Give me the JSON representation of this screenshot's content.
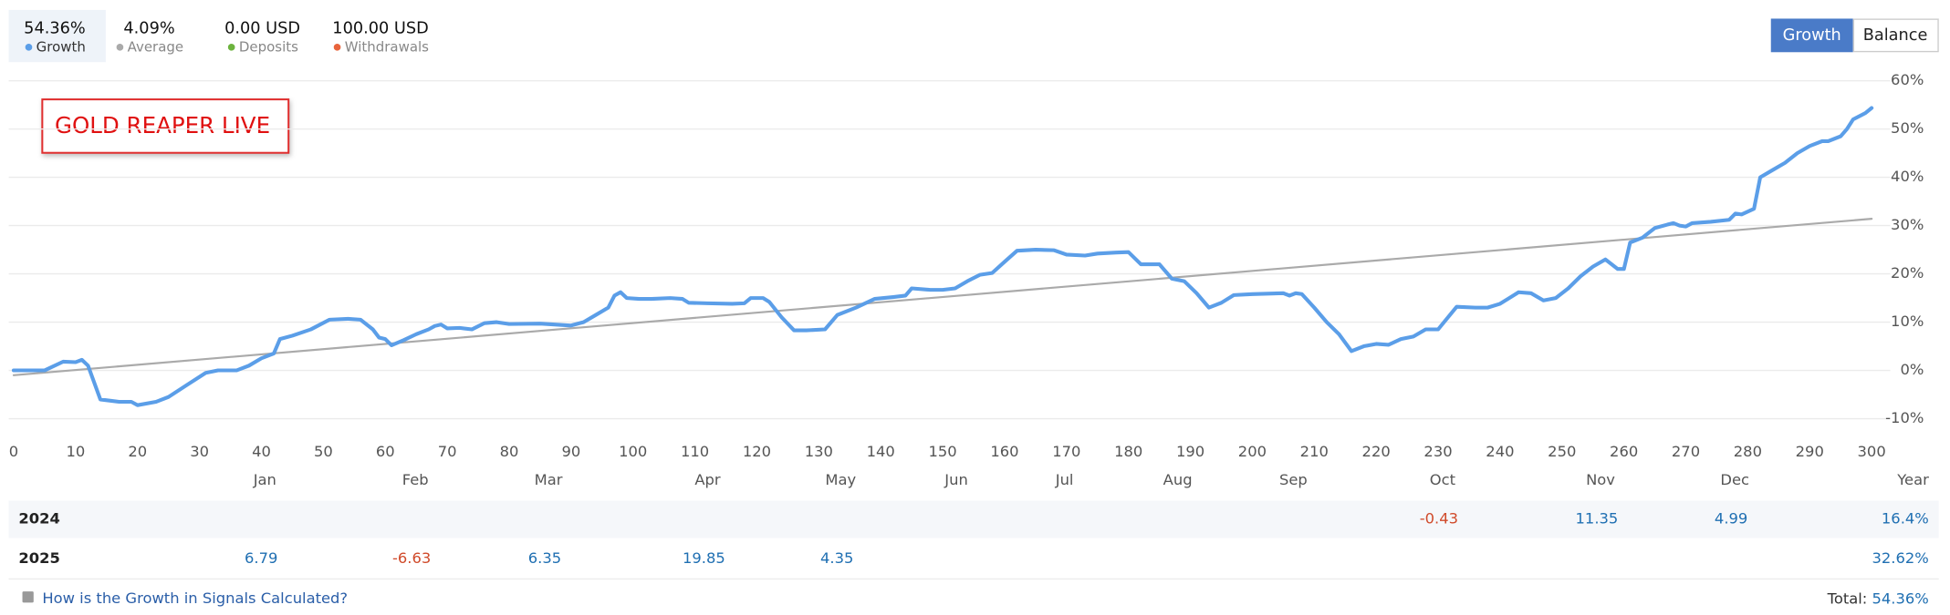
{
  "chart_data": {
    "type": "line",
    "annotation": "GOLD REAPER LIVE",
    "tabs": [
      "Growth",
      "Balance"
    ],
    "stats": [
      {
        "value": "0.00 USD",
        "label": "Deposits",
        "color": "#6cb33e"
      },
      {
        "value": "100.00 USD",
        "label": "Withdrawals",
        "color": "#e8643c"
      }
    ],
    "xlim": [
      0,
      300
    ],
    "xticks": [
      0,
      10,
      20,
      30,
      40,
      50,
      60,
      70,
      80,
      90,
      100,
      110,
      120,
      130,
      140,
      150,
      160,
      170,
      180,
      190,
      200,
      210,
      220,
      230,
      240,
      250,
      260,
      270,
      280,
      290,
      300
    ],
    "ylim": [
      -10,
      60
    ],
    "yticks": [
      {
        "value": -10,
        "label": "-10%"
      },
      {
        "value": 0,
        "label": "0%"
      },
      {
        "value": 10,
        "label": "10%"
      },
      {
        "value": 20,
        "label": "20%"
      },
      {
        "value": 30,
        "label": "30%"
      },
      {
        "value": 40,
        "label": "40%"
      },
      {
        "value": 50,
        "label": "50%"
      },
      {
        "value": 60,
        "label": "60%"
      }
    ],
    "grid": true,
    "series": [
      {
        "name": "Growth",
        "summary": "54.36%",
        "color": "#5b9ee8",
        "x": [
          0,
          5,
          8,
          10,
          11,
          12,
          14,
          17,
          19,
          20,
          23,
          25,
          28,
          31,
          33,
          36,
          38,
          40,
          42,
          43,
          45,
          48,
          51,
          54,
          56,
          58,
          59,
          60,
          61,
          63,
          65,
          67,
          68,
          69,
          70,
          72,
          74,
          76,
          78,
          80,
          85,
          90,
          92,
          94,
          96,
          97,
          98,
          99,
          101,
          103,
          106,
          108,
          109,
          112,
          116,
          118,
          119,
          121,
          122,
          124,
          126,
          128,
          131,
          133,
          136,
          139,
          142,
          144,
          145,
          148,
          150,
          152,
          154,
          156,
          158,
          160,
          162,
          165,
          168,
          170,
          173,
          175,
          178,
          180,
          182,
          185,
          187,
          189,
          191,
          193,
          195,
          197,
          200,
          205,
          206,
          207,
          208,
          210,
          212,
          214,
          216,
          218,
          220,
          222,
          224,
          226,
          228,
          230,
          233,
          236,
          238,
          240,
          243,
          245,
          247,
          249,
          251,
          253,
          255,
          257,
          259,
          260,
          261,
          263,
          265,
          267,
          268,
          269,
          270,
          271,
          274,
          277,
          278,
          279,
          281,
          282,
          284,
          286,
          288,
          290,
          292,
          293,
          295,
          296,
          297,
          299,
          300
        ],
        "values": [
          0,
          0,
          1.8,
          1.7,
          2.2,
          1,
          -6,
          -6.5,
          -6.5,
          -7.2,
          -6.5,
          -5.5,
          -3,
          -0.5,
          0,
          0,
          1,
          2.5,
          3.5,
          6.5,
          7.2,
          8.5,
          10.5,
          10.7,
          10.5,
          8.5,
          6.8,
          6.5,
          5.2,
          6.3,
          7.5,
          8.5,
          9.2,
          9.5,
          8.7,
          8.8,
          8.5,
          9.8,
          10,
          9.6,
          9.7,
          9.3,
          10,
          11.5,
          13,
          15.5,
          16.2,
          15,
          14.8,
          14.8,
          15,
          14.8,
          14,
          13.9,
          13.8,
          13.9,
          15,
          15,
          14.2,
          11,
          8.3,
          8.3,
          8.5,
          11.5,
          13,
          14.8,
          15.2,
          15.5,
          17,
          16.7,
          16.7,
          17,
          18.5,
          19.8,
          20.2,
          22.5,
          24.8,
          25,
          24.9,
          24,
          23.8,
          24.2,
          24.4,
          24.5,
          22,
          22,
          19,
          18.5,
          16,
          13,
          14,
          15.6,
          15.8,
          16,
          15.5,
          16,
          15.8,
          13,
          10,
          7.5,
          4,
          5,
          5.5,
          5.3,
          6.5,
          7,
          8.5,
          8.5,
          13.2,
          13,
          13,
          13.8,
          16.2,
          16,
          14.5,
          15,
          17,
          19.5,
          21.5,
          23,
          21,
          21,
          26.5,
          27.5,
          29.5,
          30.2,
          30.5,
          30,
          29.8,
          30.5,
          30.8,
          31.2,
          32.5,
          32.3,
          33.5,
          40,
          41.5,
          43,
          45,
          46.5,
          47.5,
          47.5,
          48.5,
          50,
          52,
          53.3,
          54.36
        ]
      },
      {
        "name": "Average",
        "summary": "4.09%",
        "color": "#aaaaaa",
        "x": [
          0,
          300
        ],
        "values": [
          -1,
          31.4
        ]
      }
    ]
  },
  "table": {
    "columns": [
      "Jan",
      "Feb",
      "Mar",
      "Apr",
      "May",
      "Jun",
      "Jul",
      "Aug",
      "Sep",
      "Oct",
      "Nov",
      "Dec",
      "Year"
    ],
    "rows": [
      {
        "year": "2024",
        "cells": [
          null,
          null,
          null,
          null,
          null,
          null,
          null,
          null,
          null,
          -0.43,
          11.35,
          4.99,
          "16.4%"
        ]
      },
      {
        "year": "2025",
        "cells": [
          6.79,
          -6.63,
          6.35,
          19.85,
          4.35,
          null,
          null,
          null,
          null,
          null,
          null,
          null,
          "32.62%"
        ]
      }
    ]
  },
  "footer": {
    "link": "How is the Growth in Signals Calculated?",
    "total_label": "Total:",
    "total": "54.36%"
  }
}
